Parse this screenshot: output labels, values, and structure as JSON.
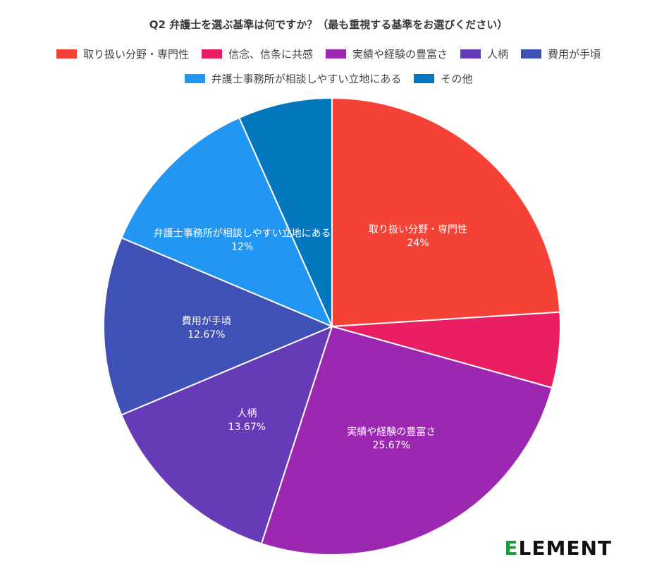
{
  "chart_data": {
    "type": "pie",
    "title": "Q2 弁護士を選ぶ基準は何ですか？（最も重視する基準をお選びください）",
    "slices": [
      {
        "name": "取り扱い分野・専門性",
        "value": 24,
        "label": "24%",
        "color": "#f44336",
        "show_label": true
      },
      {
        "name": "信念、信条に共感",
        "value": 5.33,
        "label": "",
        "color": "#e91e63",
        "show_label": false
      },
      {
        "name": "実績や経験の豊富さ",
        "value": 25.67,
        "label": "25.67%",
        "color": "#9c27b0",
        "show_label": true
      },
      {
        "name": "人柄",
        "value": 13.67,
        "label": "13.67%",
        "color": "#673ab7",
        "show_label": true
      },
      {
        "name": "費用が手頃",
        "value": 12.67,
        "label": "12.67%",
        "color": "#3f51b5",
        "show_label": true
      },
      {
        "name": "弁護士事務所が相談しやすい立地にある",
        "value": 12,
        "label": "12%",
        "color": "#2196f3",
        "show_label": true
      },
      {
        "name": "その他",
        "value": 6.66,
        "label": "",
        "color": "#0277bd",
        "show_label": false
      }
    ],
    "legend_position": "top"
  },
  "logo_text": {
    "accent": "E",
    "rest": "LEMENT"
  }
}
